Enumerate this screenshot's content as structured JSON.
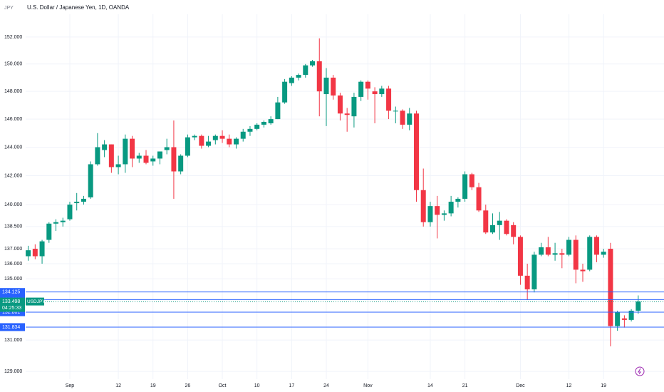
{
  "chart_data": {
    "type": "candlestick",
    "ticker": "JPY",
    "title": "U.S. Dollar / Japanese Yen, 1D, OANDA",
    "log_scale": true,
    "grid": true,
    "ylim": [
      128.15,
      153.17
    ],
    "yticks": [
      {
        "value": 129,
        "label": "129.000"
      },
      {
        "value": 131,
        "label": "131.000"
      },
      {
        "value": 135,
        "label": "135.000"
      },
      {
        "value": 136,
        "label": "136.000"
      },
      {
        "value": 137,
        "label": "137.000"
      },
      {
        "value": 138.5,
        "label": "138.500"
      },
      {
        "value": 140,
        "label": "140.000"
      },
      {
        "value": 142,
        "label": "142.000"
      },
      {
        "value": 144,
        "label": "144.000"
      },
      {
        "value": 146,
        "label": "146.000"
      },
      {
        "value": 148,
        "label": "148.000"
      },
      {
        "value": 150,
        "label": "150.000"
      },
      {
        "value": 152,
        "label": "152.000"
      }
    ],
    "categories": [
      null,
      null,
      null,
      null,
      null,
      null,
      "Sep",
      null,
      null,
      null,
      null,
      null,
      null,
      "12",
      null,
      null,
      null,
      null,
      "19",
      null,
      null,
      null,
      null,
      "26",
      null,
      null,
      null,
      null,
      "Oct",
      null,
      null,
      null,
      null,
      "10",
      null,
      null,
      null,
      null,
      "17",
      null,
      null,
      null,
      null,
      "24",
      null,
      null,
      null,
      null,
      null,
      "Nov",
      null,
      null,
      null,
      null,
      null,
      null,
      null,
      null,
      "14",
      null,
      null,
      null,
      null,
      "21",
      null,
      null,
      null,
      null,
      null,
      null,
      null,
      "Dec",
      null,
      null,
      null,
      null,
      null,
      null,
      "12",
      null,
      null,
      null,
      null,
      "19",
      null,
      null,
      null,
      null,
      null
    ],
    "up_color": "#089981",
    "down_color": "#f23645",
    "series": [
      {
        "name": "USDJPY",
        "open": [
          136.5,
          137.0,
          136.5,
          137.6,
          138.7,
          138.8,
          139.0,
          140.1,
          140.2,
          140.5,
          142.8,
          143.8,
          144.2,
          142.6,
          142.8,
          144.6,
          143.2,
          143.4,
          143.0,
          143.2,
          143.8,
          144.0,
          142.3,
          143.4,
          144.7,
          144.8,
          144.1,
          144.5,
          144.8,
          144.6,
          144.2,
          144.6,
          145.1,
          145.3,
          145.6,
          145.7,
          146.0,
          147.2,
          148.6,
          149.0,
          149.2,
          149.9,
          150.2,
          147.8,
          149.0,
          147.7,
          146.4,
          146.2,
          147.6,
          148.7,
          148.0,
          147.8,
          148.2,
          146.6,
          146.6,
          145.6,
          146.4,
          141.0,
          138.8,
          139.9,
          139.3,
          139.4,
          140.2,
          140.4,
          142.1,
          141.2,
          139.6,
          138.1,
          138.6,
          138.9,
          138.6,
          137.8,
          135.2,
          134.3,
          136.6,
          137.1,
          136.6,
          136.7,
          136.6,
          137.6,
          135.6,
          135.6,
          137.8,
          136.6,
          137.0,
          131.9,
          132.4,
          132.3,
          132.9
        ],
        "high": [
          137.2,
          137.3,
          137.6,
          138.8,
          139.0,
          139.1,
          140.2,
          140.8,
          140.6,
          143.0,
          145.0,
          144.5,
          144.2,
          143.4,
          144.9,
          144.8,
          143.6,
          143.8,
          143.4,
          143.7,
          144.6,
          145.9,
          143.5,
          144.9,
          144.9,
          144.9,
          144.8,
          144.9,
          145.2,
          144.9,
          144.7,
          145.3,
          145.5,
          145.7,
          145.9,
          146.2,
          147.6,
          148.9,
          149.1,
          149.3,
          150.0,
          150.3,
          151.9,
          149.7,
          149.2,
          147.9,
          146.8,
          147.9,
          148.8,
          148.8,
          148.3,
          148.4,
          148.4,
          146.9,
          146.7,
          146.8,
          146.6,
          142.5,
          140.2,
          140.6,
          139.6,
          140.6,
          140.5,
          142.3,
          142.2,
          141.5,
          140.0,
          139.4,
          139.5,
          139.0,
          138.8,
          137.9,
          136.0,
          136.8,
          137.4,
          137.8,
          137.4,
          137.0,
          137.8,
          137.9,
          136.0,
          137.9,
          137.9,
          137.0,
          137.4,
          132.9,
          132.6,
          133.0,
          133.9
        ],
        "low": [
          136.2,
          136.3,
          136.0,
          137.4,
          138.2,
          138.5,
          138.9,
          139.6,
          140.0,
          140.4,
          142.7,
          143.3,
          142.2,
          142.1,
          142.2,
          142.6,
          142.9,
          142.8,
          142.7,
          142.8,
          143.5,
          140.4,
          142.1,
          143.3,
          144.5,
          143.9,
          144.0,
          144.2,
          144.3,
          144.0,
          143.9,
          144.4,
          144.8,
          145.2,
          145.4,
          145.6,
          146.0,
          147.1,
          148.4,
          148.8,
          149.0,
          149.8,
          146.2,
          145.5,
          147.4,
          145.9,
          145.1,
          145.4,
          147.3,
          147.4,
          145.7,
          147.6,
          146.0,
          145.7,
          145.3,
          145.2,
          140.2,
          138.5,
          138.5,
          137.7,
          138.9,
          139.2,
          139.8,
          140.2,
          141.0,
          139.5,
          138.0,
          138.0,
          137.6,
          137.9,
          137.3,
          134.6,
          133.6,
          134.1,
          136.5,
          136.5,
          136.2,
          135.7,
          136.5,
          134.7,
          134.8,
          135.5,
          136.1,
          136.4,
          130.6,
          131.6,
          131.8,
          132.2,
          132.7
        ],
        "close": [
          136.9,
          136.5,
          137.5,
          138.7,
          138.8,
          138.9,
          140.0,
          140.2,
          140.4,
          142.8,
          144.0,
          144.2,
          142.6,
          142.8,
          144.6,
          143.2,
          143.4,
          142.9,
          143.2,
          143.7,
          144.0,
          142.3,
          143.4,
          144.7,
          144.8,
          144.1,
          144.4,
          144.8,
          144.6,
          144.2,
          144.6,
          145.1,
          145.3,
          145.6,
          145.8,
          146.0,
          147.2,
          148.7,
          149.0,
          149.2,
          149.9,
          150.2,
          148.0,
          149.0,
          147.7,
          146.4,
          146.3,
          147.6,
          148.7,
          148.2,
          147.8,
          148.2,
          146.6,
          146.6,
          145.6,
          146.4,
          141.0,
          138.8,
          139.9,
          139.3,
          139.4,
          140.2,
          140.4,
          142.1,
          141.2,
          139.6,
          138.1,
          138.6,
          138.9,
          138.0,
          137.8,
          135.2,
          134.3,
          136.6,
          137.1,
          136.6,
          136.7,
          136.6,
          137.6,
          135.6,
          135.5,
          137.8,
          136.6,
          136.8,
          131.9,
          132.8,
          132.3,
          132.9,
          133.5
        ]
      }
    ],
    "price_lines": [
      134.125,
      133.623,
      132.801,
      131.834
    ],
    "line_color": "#2962ff",
    "last_price": 133.498,
    "countdown": "04:25:33"
  }
}
